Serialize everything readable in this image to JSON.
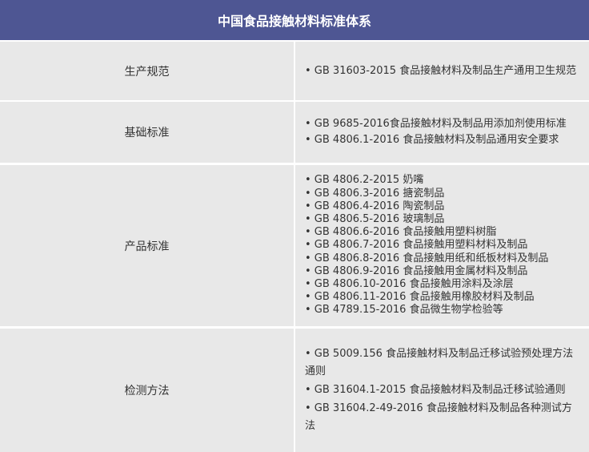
{
  "title": "中国食品接触材料标准体系",
  "colors": {
    "header": "#4e5693",
    "cell": "#e8e8e8",
    "divider": "#ffffff"
  },
  "rows": [
    {
      "category": "生产规范",
      "items": [
        "• GB 31603-2015 食品接触材料及制品生产通用卫生规范"
      ]
    },
    {
      "category": "基础标准",
      "items": [
        "• GB 9685-2016食品接触材料及制品用添加剂使用标准",
        "• GB 4806.1-2016 食品接触材料及制品通用安全要求"
      ]
    },
    {
      "category": "产品标准",
      "items": [
        "• GB 4806.2-2015 奶嘴",
        "• GB 4806.3-2016 搪瓷制品",
        "• GB 4806.4-2016 陶瓷制品",
        "• GB 4806.5-2016 玻璃制品",
        "• GB 4806.6-2016 食品接触用塑料树脂",
        "• GB 4806.7-2016 食品接触用塑料材料及制品",
        "• GB 4806.8-2016 食品接触用纸和纸板材料及制品",
        "• GB 4806.9-2016 食品接触用金属材料及制品",
        "• GB 4806.10-2016 食品接触用涂料及涂层",
        "• GB 4806.11-2016 食品接触用橡胶材料及制品",
        "• GB 4789.15-2016 食品微生物学检验等"
      ]
    },
    {
      "category": "检测方法",
      "items": [
        "• GB 5009.156 食品接触材料及制品迁移试验预处理方法通则",
        "• GB 31604.1-2015 食品接触材料及制品迁移试验通则",
        "• GB 31604.2-49-2016 食品接触材料及制品各种测试方法"
      ]
    }
  ]
}
